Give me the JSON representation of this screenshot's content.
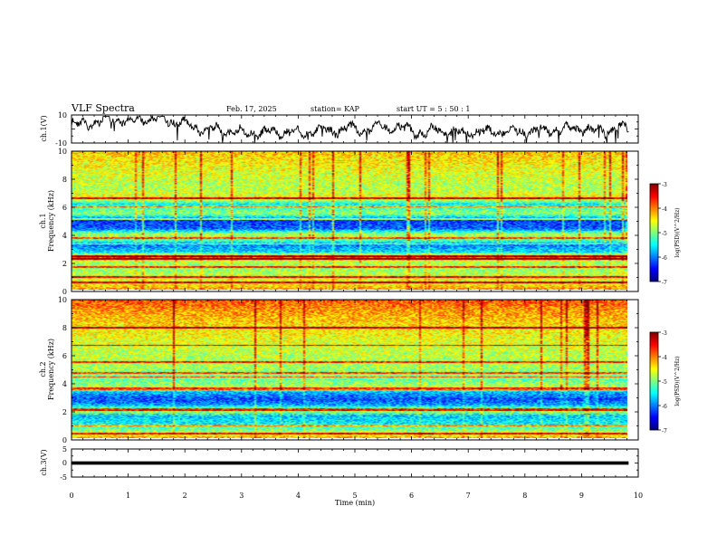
{
  "header": {
    "title": "VLF Spectra",
    "date": "Feb. 17, 2025",
    "station": "station= KAP",
    "start": "start  UT =   5  : 50 : 1"
  },
  "chart_data": [
    {
      "type": "line",
      "name": "ch1-waveform",
      "ylabel": "ch.1(V)",
      "ylim": [
        -10,
        10
      ],
      "yticks": [
        "10",
        "-10"
      ],
      "xlim": [
        0,
        10
      ],
      "x_extent": [
        0,
        9.83
      ],
      "description": "noisy waveform centered near +3 V varying between about -10 and +9 V"
    },
    {
      "type": "heatmap",
      "name": "ch1-spectrogram",
      "ylabel": "ch.1\nFrequency (kHz)",
      "ylabel_lines": [
        "ch.1",
        "Frequency (kHz)"
      ],
      "ylim": [
        0,
        10
      ],
      "yticks": [
        "0",
        "2",
        "4",
        "6",
        "8",
        "10"
      ],
      "xlim": [
        0,
        10
      ],
      "x_extent": [
        0,
        9.83
      ],
      "colorbar": {
        "label": "log(PSD)(V^2/Hz)",
        "ticks": [
          "-3",
          "-4",
          "-5",
          "-6",
          "-7"
        ],
        "range": [
          -7,
          -3
        ]
      },
      "band_profile_khz": [
        [
          0.0,
          -4.1
        ],
        [
          0.3,
          -4.4
        ],
        [
          0.8,
          -4.6
        ],
        [
          1.4,
          -4.9
        ],
        [
          2.0,
          -4.8
        ],
        [
          2.3,
          -3.8
        ],
        [
          2.7,
          -5.6
        ],
        [
          3.2,
          -6.0
        ],
        [
          3.6,
          -5.1
        ],
        [
          4.0,
          -4.8
        ],
        [
          4.4,
          -6.1
        ],
        [
          5.0,
          -6.3
        ],
        [
          5.5,
          -4.9
        ],
        [
          6.2,
          -5.5
        ],
        [
          6.6,
          -4.5
        ],
        [
          7.3,
          -4.8
        ],
        [
          8.0,
          -4.7
        ],
        [
          9.0,
          -4.5
        ],
        [
          10.0,
          -4.3
        ]
      ]
    },
    {
      "type": "heatmap",
      "name": "ch2-spectrogram",
      "ylabel": "ch.2\nFrequency (kHz)",
      "ylabel_lines": [
        "ch.2",
        "Frequency (kHz)"
      ],
      "ylim": [
        0,
        10
      ],
      "yticks": [
        "0",
        "2",
        "4",
        "6",
        "8",
        "10"
      ],
      "xlim": [
        0,
        10
      ],
      "x_extent": [
        0,
        9.83
      ],
      "colorbar": {
        "label": "log(PSD)(V^2/Hz)",
        "ticks": [
          "-3",
          "-4",
          "-5",
          "-6",
          "-7"
        ],
        "range": [
          -7,
          -3
        ]
      },
      "band_profile_khz": [
        [
          0.0,
          -4.2
        ],
        [
          0.4,
          -4.8
        ],
        [
          1.0,
          -5.5
        ],
        [
          1.6,
          -5.7
        ],
        [
          2.0,
          -4.6
        ],
        [
          2.4,
          -5.9
        ],
        [
          2.8,
          -6.2
        ],
        [
          3.3,
          -5.8
        ],
        [
          3.6,
          -4.7
        ],
        [
          4.2,
          -5.1
        ],
        [
          4.8,
          -4.9
        ],
        [
          5.5,
          -4.8
        ],
        [
          6.5,
          -4.7
        ],
        [
          7.5,
          -4.5
        ],
        [
          8.5,
          -4.3
        ],
        [
          9.5,
          -4.0
        ],
        [
          10.0,
          -3.8
        ]
      ]
    },
    {
      "type": "line",
      "name": "ch3-waveform",
      "ylabel": "ch.3(V)",
      "ylim": [
        -5,
        5
      ],
      "yticks": [
        "5",
        "0",
        "-5"
      ],
      "xlim": [
        0,
        10
      ],
      "x_extent": [
        0,
        9.83
      ],
      "band": [
        -0.6,
        0.6
      ],
      "description": "flat thick band around 0 V"
    }
  ],
  "x_axis": {
    "label": "Time (min)",
    "ticks": [
      "0",
      "1",
      "2",
      "3",
      "4",
      "5",
      "6",
      "7",
      "8",
      "9",
      "10"
    ]
  }
}
